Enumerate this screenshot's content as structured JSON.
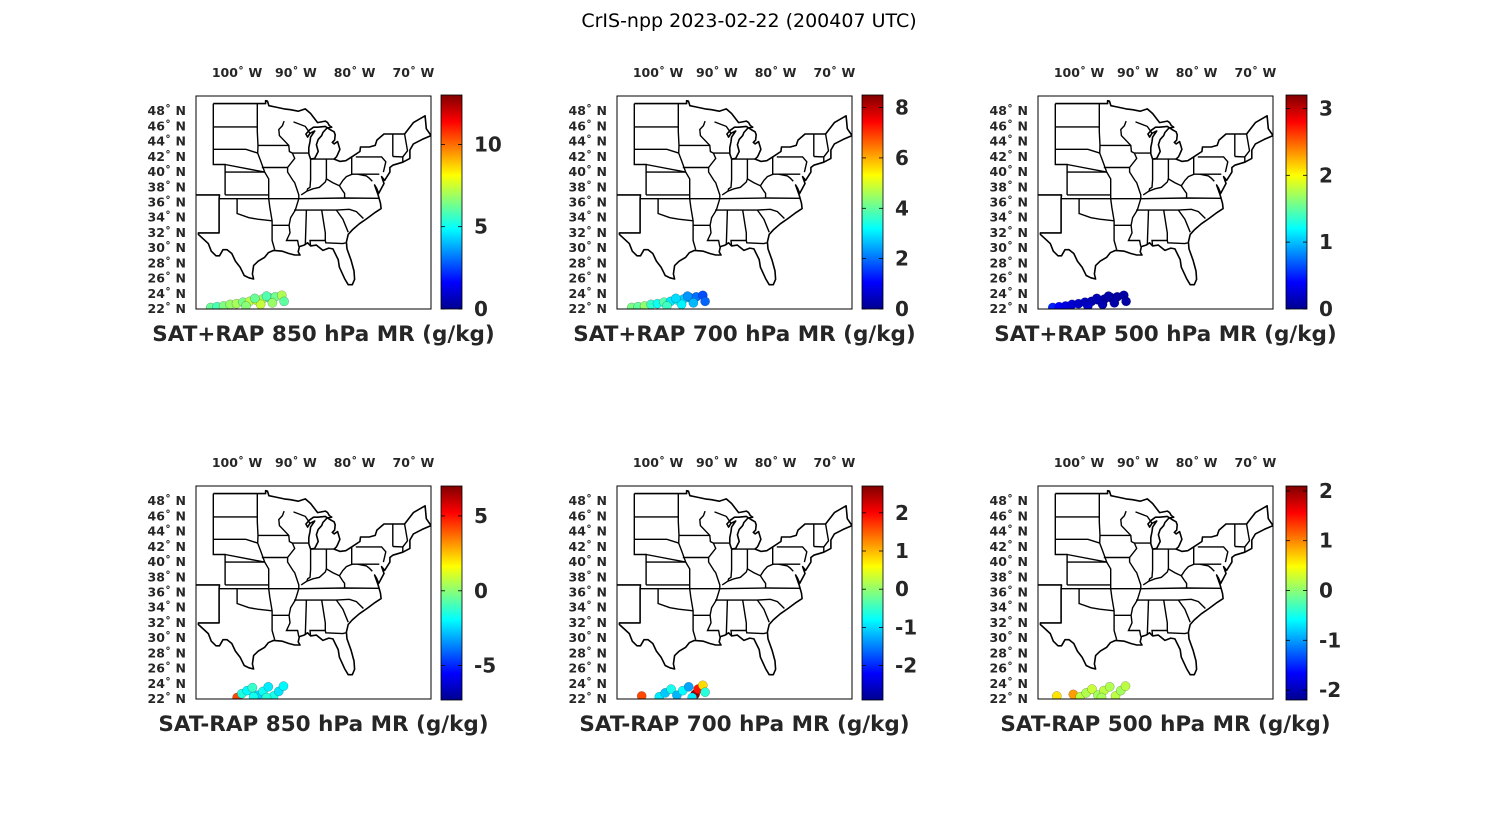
{
  "figure": {
    "title": "CrIS-npp 2023-02-22 (200407 UTC)",
    "lon_ticks": [
      {
        "label": "100˚ W",
        "lon": -100
      },
      {
        "label": "90˚ W",
        "lon": -90
      },
      {
        "label": "80˚ W",
        "lon": -80
      },
      {
        "label": "70˚ W",
        "lon": -70
      }
    ],
    "lat_ticks": [
      {
        "label": "48˚ N",
        "lat": 48
      },
      {
        "label": "46˚ N",
        "lat": 46
      },
      {
        "label": "44˚ N",
        "lat": 44
      },
      {
        "label": "42˚ N",
        "lat": 42
      },
      {
        "label": "40˚ N",
        "lat": 40
      },
      {
        "label": "38˚ N",
        "lat": 38
      },
      {
        "label": "36˚ N",
        "lat": 36
      },
      {
        "label": "34˚ N",
        "lat": 34
      },
      {
        "label": "32˚ N",
        "lat": 32
      },
      {
        "label": "30˚ N",
        "lat": 30
      },
      {
        "label": "28˚ N",
        "lat": 28
      },
      {
        "label": "26˚ N",
        "lat": 26
      },
      {
        "label": "24˚ N",
        "lat": 24
      },
      {
        "label": "22˚ N",
        "lat": 22
      }
    ],
    "map_extent": {
      "lon": [
        -107,
        -67
      ],
      "lat": [
        22,
        50
      ]
    },
    "colormap": "jet",
    "colormap_stops": [
      "#00008f",
      "#0000ff",
      "#0080ff",
      "#00ffff",
      "#80ff80",
      "#ffff00",
      "#ff8000",
      "#ff0000",
      "#800000"
    ]
  },
  "panels": [
    {
      "id": "p1",
      "label": "SAT+RAP 850 hPa MR (g/kg)",
      "clim": [
        0,
        13
      ],
      "ticks": [
        0,
        5,
        10
      ],
      "points": [
        [
          -104.5,
          22.2,
          6.2
        ],
        [
          -103.4,
          22.3,
          5.8
        ],
        [
          -102.3,
          22.4,
          6.5
        ],
        [
          -101.2,
          22.6,
          6.8
        ],
        [
          -100.1,
          22.7,
          7.0
        ],
        [
          -99.0,
          22.9,
          6.4
        ],
        [
          -97.9,
          23.0,
          7.2
        ],
        [
          -96.8,
          23.2,
          7.6
        ],
        [
          -95.7,
          23.3,
          6.9
        ],
        [
          -94.6,
          23.5,
          6.0
        ],
        [
          -93.5,
          23.6,
          6.3
        ],
        [
          -92.4,
          23.8,
          7.1
        ],
        [
          -98.5,
          22.4,
          6.6
        ],
        [
          -96.0,
          22.6,
          7.4
        ],
        [
          -94.0,
          22.8,
          6.8
        ],
        [
          -92.0,
          23.0,
          6.1
        ],
        [
          -95.0,
          23.7,
          5.9
        ],
        [
          -97.0,
          23.4,
          6.2
        ]
      ]
    },
    {
      "id": "p2",
      "label": "SAT+RAP 700 hPa MR (g/kg)",
      "clim": [
        0,
        8.5
      ],
      "ticks": [
        0,
        2,
        4,
        6,
        8
      ],
      "points": [
        [
          -104.5,
          22.2,
          4.2
        ],
        [
          -103.4,
          22.3,
          4.0
        ],
        [
          -102.3,
          22.4,
          4.4
        ],
        [
          -101.2,
          22.6,
          3.6
        ],
        [
          -100.1,
          22.7,
          3.3
        ],
        [
          -99.0,
          22.9,
          3.9
        ],
        [
          -97.9,
          23.0,
          3.0
        ],
        [
          -96.8,
          23.2,
          3.4
        ],
        [
          -95.7,
          23.3,
          2.8
        ],
        [
          -94.6,
          23.5,
          2.4
        ],
        [
          -93.5,
          23.6,
          2.0
        ],
        [
          -92.4,
          23.8,
          1.7
        ],
        [
          -98.5,
          22.4,
          3.7
        ],
        [
          -96.0,
          22.6,
          3.1
        ],
        [
          -94.0,
          22.8,
          2.6
        ],
        [
          -92.0,
          23.0,
          1.9
        ],
        [
          -95.0,
          23.7,
          2.3
        ],
        [
          -97.0,
          23.4,
          2.9
        ]
      ]
    },
    {
      "id": "p3",
      "label": "SAT+RAP 500 hPa MR (g/kg)",
      "clim": [
        0,
        3.2
      ],
      "ticks": [
        0,
        1,
        2,
        3
      ],
      "points": [
        [
          -104.5,
          22.2,
          0.5
        ],
        [
          -103.4,
          22.3,
          0.4
        ],
        [
          -102.3,
          22.4,
          0.3
        ],
        [
          -101.2,
          22.6,
          0.25
        ],
        [
          -100.1,
          22.7,
          0.22
        ],
        [
          -99.0,
          22.9,
          0.18
        ],
        [
          -97.9,
          23.0,
          0.15
        ],
        [
          -96.8,
          23.2,
          0.12
        ],
        [
          -95.7,
          23.3,
          0.1
        ],
        [
          -94.6,
          23.5,
          0.1
        ],
        [
          -93.5,
          23.6,
          0.08
        ],
        [
          -92.4,
          23.8,
          0.08
        ],
        [
          -98.5,
          22.4,
          0.2
        ],
        [
          -96.0,
          22.6,
          0.12
        ],
        [
          -94.0,
          22.8,
          0.1
        ],
        [
          -92.0,
          23.0,
          0.08
        ],
        [
          -95.0,
          23.7,
          0.1
        ],
        [
          -97.0,
          23.4,
          0.14
        ]
      ]
    },
    {
      "id": "p4",
      "label": "SAT-RAP 850 hPa MR (g/kg)",
      "clim": [
        -7.3,
        7
      ],
      "ticks": [
        -5,
        0,
        5
      ],
      "points": [
        [
          -100.0,
          22.2,
          4.2
        ],
        [
          -99.2,
          22.7,
          -1.5
        ],
        [
          -98.3,
          23.1,
          -2.0
        ],
        [
          -97.4,
          23.5,
          -1.2
        ],
        [
          -96.5,
          22.5,
          -2.5
        ],
        [
          -95.6,
          23.0,
          -1.8
        ],
        [
          -94.7,
          23.6,
          -2.2
        ],
        [
          -93.8,
          22.4,
          -1.6
        ],
        [
          -92.9,
          23.0,
          -2.3
        ],
        [
          -92.1,
          23.7,
          -2.0
        ],
        [
          -95.0,
          22.2,
          -1.4
        ],
        [
          -97.2,
          22.3,
          -1.7
        ]
      ]
    },
    {
      "id": "p5",
      "label": "SAT-RAP 700 hPa MR (g/kg)",
      "clim": [
        -2.9,
        2.7
      ],
      "ticks": [
        -2,
        -1,
        0,
        1,
        2
      ],
      "points": [
        [
          -102.8,
          22.4,
          1.6
        ],
        [
          -99.8,
          22.3,
          -0.9
        ],
        [
          -98.8,
          22.8,
          -1.1
        ],
        [
          -97.8,
          23.3,
          -0.7
        ],
        [
          -96.8,
          22.5,
          -1.2
        ],
        [
          -95.8,
          23.1,
          -0.8
        ],
        [
          -94.8,
          23.6,
          -1.3
        ],
        [
          -93.7,
          22.6,
          2.6
        ],
        [
          -93.2,
          23.3,
          1.9
        ],
        [
          -92.4,
          23.8,
          0.8
        ],
        [
          -92.0,
          22.9,
          -0.6
        ],
        [
          -94.2,
          22.2,
          -0.9
        ]
      ]
    },
    {
      "id": "p6",
      "label": "SAT-RAP 500 hPa MR (g/kg)",
      "clim": [
        -2.2,
        2.1
      ],
      "ticks": [
        -2,
        -1,
        0,
        1,
        2
      ],
      "points": [
        [
          -103.8,
          22.4,
          0.6
        ],
        [
          -101.0,
          22.6,
          0.9
        ],
        [
          -99.8,
          22.3,
          0.2
        ],
        [
          -98.8,
          22.8,
          0.15
        ],
        [
          -97.8,
          23.3,
          0.25
        ],
        [
          -96.8,
          22.5,
          0.1
        ],
        [
          -95.8,
          23.1,
          0.2
        ],
        [
          -94.8,
          23.6,
          0.15
        ],
        [
          -93.8,
          22.4,
          0.2
        ],
        [
          -92.9,
          23.1,
          0.1
        ],
        [
          -92.1,
          23.7,
          0.2
        ],
        [
          -96.2,
          22.2,
          0.12
        ]
      ]
    }
  ]
}
